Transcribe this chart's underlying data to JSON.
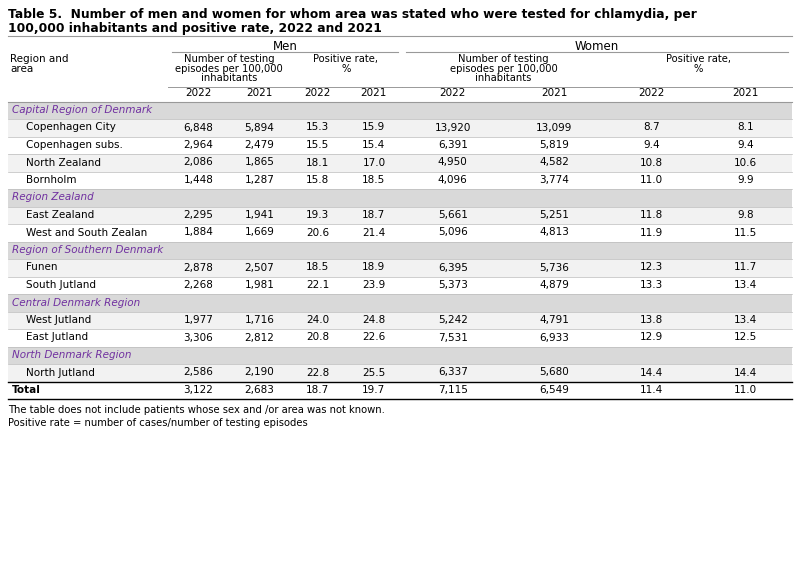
{
  "title_line1": "Table 5.  Number of men and women for whom area was stated who were tested for chlamydia, per",
  "title_line2": "100,000 inhabitants and positive rate, 2022 and 2021",
  "footnote1": "The table does not include patients whose sex and /or area was not known.",
  "footnote2": "Positive rate = number of cases/number of testing episodes",
  "col_header_men": "Men",
  "col_header_women": "Women",
  "sub_header1_lines": [
    "Number of testing",
    "episodes per 100,000",
    "inhabitants"
  ],
  "sub_header2_lines": [
    "Positive rate,",
    "%"
  ],
  "sub_header3_lines": [
    "Number of testing",
    "episodes per 100,000",
    "inhabitants"
  ],
  "sub_header4_lines": [
    "Positive rate,",
    "%"
  ],
  "year_headers": [
    "2022",
    "2021",
    "2022",
    "2021",
    "2022",
    "2021",
    "2022",
    "2021"
  ],
  "region_bg": "#d9d9d9",
  "data_bg_alt": "#f2f2f2",
  "data_bg_norm": "#ffffff",
  "region_text_color": "#7030a0",
  "rows": [
    {
      "type": "region",
      "label": "Capital Region of Denmark",
      "values": []
    },
    {
      "type": "data",
      "label": "Copenhagen City",
      "values": [
        "6,848",
        "5,894",
        "15.3",
        "15.9",
        "13,920",
        "13,099",
        "8.7",
        "8.1"
      ]
    },
    {
      "type": "data",
      "label": "Copenhagen subs.",
      "values": [
        "2,964",
        "2,479",
        "15.5",
        "15.4",
        "6,391",
        "5,819",
        "9.4",
        "9.4"
      ]
    },
    {
      "type": "data",
      "label": "North Zealand",
      "values": [
        "2,086",
        "1,865",
        "18.1",
        "17.0",
        "4,950",
        "4,582",
        "10.8",
        "10.6"
      ]
    },
    {
      "type": "data",
      "label": "Bornholm",
      "values": [
        "1,448",
        "1,287",
        "15.8",
        "18.5",
        "4,096",
        "3,774",
        "11.0",
        "9.9"
      ]
    },
    {
      "type": "region",
      "label": "Region Zealand",
      "values": []
    },
    {
      "type": "data",
      "label": "East Zealand",
      "values": [
        "2,295",
        "1,941",
        "19.3",
        "18.7",
        "5,661",
        "5,251",
        "11.8",
        "9.8"
      ]
    },
    {
      "type": "data",
      "label": "West and South Zealan",
      "values": [
        "1,884",
        "1,669",
        "20.6",
        "21.4",
        "5,096",
        "4,813",
        "11.9",
        "11.5"
      ]
    },
    {
      "type": "region",
      "label": "Region of Southern Denmark",
      "values": []
    },
    {
      "type": "data",
      "label": "Funen",
      "values": [
        "2,878",
        "2,507",
        "18.5",
        "18.9",
        "6,395",
        "5,736",
        "12.3",
        "11.7"
      ]
    },
    {
      "type": "data",
      "label": "South Jutland",
      "values": [
        "2,268",
        "1,981",
        "22.1",
        "23.9",
        "5,373",
        "4,879",
        "13.3",
        "13.4"
      ]
    },
    {
      "type": "region",
      "label": "Central Denmark Region",
      "values": []
    },
    {
      "type": "data",
      "label": "West Jutland",
      "values": [
        "1,977",
        "1,716",
        "24.0",
        "24.8",
        "5,242",
        "4,791",
        "13.8",
        "13.4"
      ]
    },
    {
      "type": "data",
      "label": "East Jutland",
      "values": [
        "3,306",
        "2,812",
        "20.8",
        "22.6",
        "7,531",
        "6,933",
        "12.9",
        "12.5"
      ]
    },
    {
      "type": "region",
      "label": "North Denmark Region",
      "values": []
    },
    {
      "type": "data",
      "label": "North Jutland",
      "values": [
        "2,586",
        "2,190",
        "22.8",
        "25.5",
        "6,337",
        "5,680",
        "14.4",
        "14.4"
      ]
    },
    {
      "type": "total",
      "label": "Total",
      "values": [
        "3,122",
        "2,683",
        "18.7",
        "19.7",
        "7,115",
        "6,549",
        "11.4",
        "11.0"
      ]
    }
  ]
}
